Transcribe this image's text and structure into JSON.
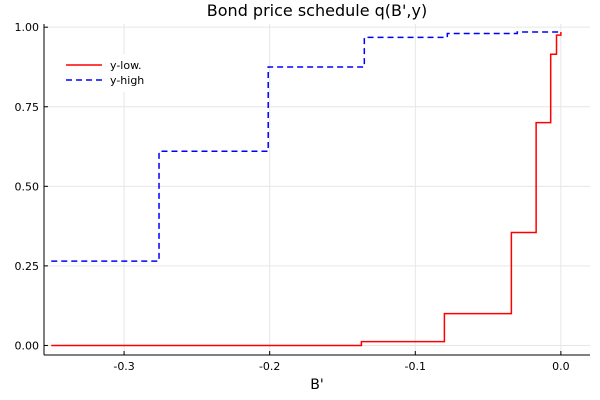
{
  "chart_data": {
    "type": "line",
    "title": "Bond price schedule q(B',y)",
    "xlabel": "B'",
    "ylabel": "",
    "xlim": [
      -0.355,
      0.02
    ],
    "ylim": [
      -0.03,
      1.01
    ],
    "xticks": [
      -0.3,
      -0.2,
      -0.1,
      0.0
    ],
    "xtick_labels": [
      "-0.3",
      "-0.2",
      "-0.1",
      "0.0"
    ],
    "yticks": [
      0.0,
      0.25,
      0.5,
      0.75,
      1.0
    ],
    "ytick_labels": [
      "0.00",
      "0.25",
      "0.50",
      "0.75",
      "1.00"
    ],
    "grid": true,
    "legend_position": "top-left",
    "series": [
      {
        "name": "y-low.",
        "color": "#ff0000",
        "dash": "solid",
        "x": [
          -0.35,
          -0.14,
          -0.137,
          -0.082,
          -0.08,
          -0.036,
          -0.034,
          -0.019,
          -0.017,
          -0.009,
          -0.007,
          -0.004,
          -0.003,
          -0.001,
          0.0
        ],
        "y": [
          0.0,
          0.0,
          0.012,
          0.012,
          0.1,
          0.1,
          0.355,
          0.355,
          0.7,
          0.7,
          0.915,
          0.915,
          0.975,
          0.975,
          0.985
        ]
      },
      {
        "name": "y-high",
        "color": "#0000ff",
        "dash": "dashed",
        "x": [
          -0.35,
          -0.278,
          -0.276,
          -0.203,
          -0.201,
          -0.137,
          -0.135,
          -0.082,
          -0.078,
          -0.035,
          -0.03,
          0.0
        ],
        "y": [
          0.265,
          0.265,
          0.61,
          0.61,
          0.875,
          0.875,
          0.968,
          0.968,
          0.98,
          0.98,
          0.985,
          0.985
        ]
      }
    ]
  }
}
